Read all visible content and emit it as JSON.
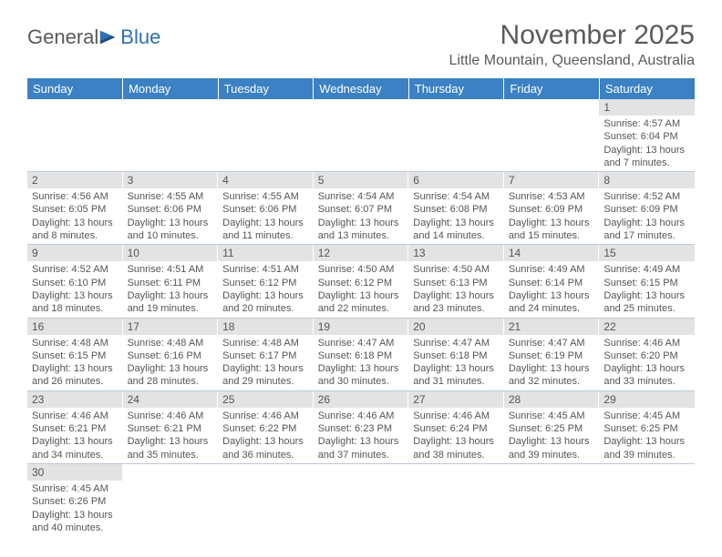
{
  "logo": {
    "text1": "General",
    "text2": "Blue"
  },
  "title": "November 2025",
  "location": "Little Mountain, Queensland, Australia",
  "colors": {
    "header_bg": "#3b81c3",
    "header_text": "#ffffff",
    "daynum_bg": "#e3e3e3",
    "border": "#bcc9d6",
    "body_text": "#555555",
    "logo_blue": "#2f6fb3"
  },
  "day_headers": [
    "Sunday",
    "Monday",
    "Tuesday",
    "Wednesday",
    "Thursday",
    "Friday",
    "Saturday"
  ],
  "weeks": [
    [
      null,
      null,
      null,
      null,
      null,
      null,
      {
        "n": "1",
        "sr": "4:57 AM",
        "ss": "6:04 PM",
        "dl": "13 hours and 7 minutes."
      }
    ],
    [
      {
        "n": "2",
        "sr": "4:56 AM",
        "ss": "6:05 PM",
        "dl": "13 hours and 8 minutes."
      },
      {
        "n": "3",
        "sr": "4:55 AM",
        "ss": "6:06 PM",
        "dl": "13 hours and 10 minutes."
      },
      {
        "n": "4",
        "sr": "4:55 AM",
        "ss": "6:06 PM",
        "dl": "13 hours and 11 minutes."
      },
      {
        "n": "5",
        "sr": "4:54 AM",
        "ss": "6:07 PM",
        "dl": "13 hours and 13 minutes."
      },
      {
        "n": "6",
        "sr": "4:54 AM",
        "ss": "6:08 PM",
        "dl": "13 hours and 14 minutes."
      },
      {
        "n": "7",
        "sr": "4:53 AM",
        "ss": "6:09 PM",
        "dl": "13 hours and 15 minutes."
      },
      {
        "n": "8",
        "sr": "4:52 AM",
        "ss": "6:09 PM",
        "dl": "13 hours and 17 minutes."
      }
    ],
    [
      {
        "n": "9",
        "sr": "4:52 AM",
        "ss": "6:10 PM",
        "dl": "13 hours and 18 minutes."
      },
      {
        "n": "10",
        "sr": "4:51 AM",
        "ss": "6:11 PM",
        "dl": "13 hours and 19 minutes."
      },
      {
        "n": "11",
        "sr": "4:51 AM",
        "ss": "6:12 PM",
        "dl": "13 hours and 20 minutes."
      },
      {
        "n": "12",
        "sr": "4:50 AM",
        "ss": "6:12 PM",
        "dl": "13 hours and 22 minutes."
      },
      {
        "n": "13",
        "sr": "4:50 AM",
        "ss": "6:13 PM",
        "dl": "13 hours and 23 minutes."
      },
      {
        "n": "14",
        "sr": "4:49 AM",
        "ss": "6:14 PM",
        "dl": "13 hours and 24 minutes."
      },
      {
        "n": "15",
        "sr": "4:49 AM",
        "ss": "6:15 PM",
        "dl": "13 hours and 25 minutes."
      }
    ],
    [
      {
        "n": "16",
        "sr": "4:48 AM",
        "ss": "6:15 PM",
        "dl": "13 hours and 26 minutes."
      },
      {
        "n": "17",
        "sr": "4:48 AM",
        "ss": "6:16 PM",
        "dl": "13 hours and 28 minutes."
      },
      {
        "n": "18",
        "sr": "4:48 AM",
        "ss": "6:17 PM",
        "dl": "13 hours and 29 minutes."
      },
      {
        "n": "19",
        "sr": "4:47 AM",
        "ss": "6:18 PM",
        "dl": "13 hours and 30 minutes."
      },
      {
        "n": "20",
        "sr": "4:47 AM",
        "ss": "6:18 PM",
        "dl": "13 hours and 31 minutes."
      },
      {
        "n": "21",
        "sr": "4:47 AM",
        "ss": "6:19 PM",
        "dl": "13 hours and 32 minutes."
      },
      {
        "n": "22",
        "sr": "4:46 AM",
        "ss": "6:20 PM",
        "dl": "13 hours and 33 minutes."
      }
    ],
    [
      {
        "n": "23",
        "sr": "4:46 AM",
        "ss": "6:21 PM",
        "dl": "13 hours and 34 minutes."
      },
      {
        "n": "24",
        "sr": "4:46 AM",
        "ss": "6:21 PM",
        "dl": "13 hours and 35 minutes."
      },
      {
        "n": "25",
        "sr": "4:46 AM",
        "ss": "6:22 PM",
        "dl": "13 hours and 36 minutes."
      },
      {
        "n": "26",
        "sr": "4:46 AM",
        "ss": "6:23 PM",
        "dl": "13 hours and 37 minutes."
      },
      {
        "n": "27",
        "sr": "4:46 AM",
        "ss": "6:24 PM",
        "dl": "13 hours and 38 minutes."
      },
      {
        "n": "28",
        "sr": "4:45 AM",
        "ss": "6:25 PM",
        "dl": "13 hours and 39 minutes."
      },
      {
        "n": "29",
        "sr": "4:45 AM",
        "ss": "6:25 PM",
        "dl": "13 hours and 39 minutes."
      }
    ],
    [
      {
        "n": "30",
        "sr": "4:45 AM",
        "ss": "6:26 PM",
        "dl": "13 hours and 40 minutes."
      },
      null,
      null,
      null,
      null,
      null,
      null
    ]
  ],
  "labels": {
    "sunrise": "Sunrise: ",
    "sunset": "Sunset: ",
    "daylight": "Daylight: "
  }
}
